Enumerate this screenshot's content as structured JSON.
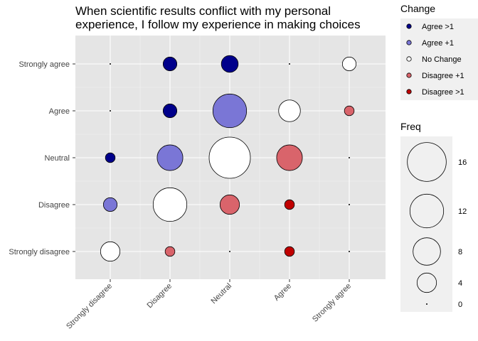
{
  "chart_data": {
    "type": "scatter",
    "title_lines": [
      "When scientific results conflict with my personal",
      "experience, I follow my experience in making choices"
    ],
    "x_categories": [
      "Strongly disagree",
      "Disagree",
      "Neutral",
      "Agree",
      "Strongly agree"
    ],
    "y_categories": [
      "Strongly disagree",
      "Disagree",
      "Neutral",
      "Agree",
      "Strongly agree"
    ],
    "xlabel": "",
    "ylabel": "",
    "change_legend": {
      "title": "Change",
      "items": [
        {
          "key": "agree2",
          "label": "Agree >1",
          "color": "#00008b"
        },
        {
          "key": "agree1",
          "label": "Agree +1",
          "color": "#7a76d6"
        },
        {
          "key": "none",
          "label": "No Change",
          "color": "#ffffff"
        },
        {
          "key": "disagree1",
          "label": "Disagree +1",
          "color": "#d9646b"
        },
        {
          "key": "disagree2",
          "label": "Disagree >1",
          "color": "#c00000"
        }
      ]
    },
    "freq_legend": {
      "title": "Freq",
      "values": [
        16,
        12,
        8,
        4,
        0
      ],
      "max": 18
    },
    "points": [
      {
        "x": "Strongly disagree",
        "y": "Strongly agree",
        "freq": 0,
        "change": "none"
      },
      {
        "x": "Disagree",
        "y": "Strongly agree",
        "freq": 2,
        "change": "agree2"
      },
      {
        "x": "Neutral",
        "y": "Strongly agree",
        "freq": 3,
        "change": "agree2"
      },
      {
        "x": "Agree",
        "y": "Strongly agree",
        "freq": 0,
        "change": "none"
      },
      {
        "x": "Strongly agree",
        "y": "Strongly agree",
        "freq": 2,
        "change": "none"
      },
      {
        "x": "Strongly disagree",
        "y": "Agree",
        "freq": 0,
        "change": "none"
      },
      {
        "x": "Disagree",
        "y": "Agree",
        "freq": 2,
        "change": "agree2"
      },
      {
        "x": "Neutral",
        "y": "Agree",
        "freq": 12,
        "change": "agree1"
      },
      {
        "x": "Agree",
        "y": "Agree",
        "freq": 5,
        "change": "none"
      },
      {
        "x": "Strongly agree",
        "y": "Agree",
        "freq": 1,
        "change": "disagree1"
      },
      {
        "x": "Strongly disagree",
        "y": "Neutral",
        "freq": 1,
        "change": "agree2"
      },
      {
        "x": "Disagree",
        "y": "Neutral",
        "freq": 7,
        "change": "agree1"
      },
      {
        "x": "Neutral",
        "y": "Neutral",
        "freq": 18,
        "change": "none"
      },
      {
        "x": "Agree",
        "y": "Neutral",
        "freq": 7,
        "change": "disagree1"
      },
      {
        "x": "Strongly agree",
        "y": "Neutral",
        "freq": 0,
        "change": "none"
      },
      {
        "x": "Strongly disagree",
        "y": "Disagree",
        "freq": 2,
        "change": "agree1"
      },
      {
        "x": "Disagree",
        "y": "Disagree",
        "freq": 12,
        "change": "none"
      },
      {
        "x": "Neutral",
        "y": "Disagree",
        "freq": 4,
        "change": "disagree1"
      },
      {
        "x": "Agree",
        "y": "Disagree",
        "freq": 1,
        "change": "disagree2"
      },
      {
        "x": "Strongly agree",
        "y": "Disagree",
        "freq": 0,
        "change": "none"
      },
      {
        "x": "Strongly disagree",
        "y": "Strongly disagree",
        "freq": 4,
        "change": "none"
      },
      {
        "x": "Disagree",
        "y": "Strongly disagree",
        "freq": 1,
        "change": "disagree1"
      },
      {
        "x": "Neutral",
        "y": "Strongly disagree",
        "freq": 0,
        "change": "none"
      },
      {
        "x": "Agree",
        "y": "Strongly disagree",
        "freq": 1,
        "change": "disagree2"
      },
      {
        "x": "Strongly agree",
        "y": "Strongly disagree",
        "freq": 0,
        "change": "none"
      }
    ]
  }
}
